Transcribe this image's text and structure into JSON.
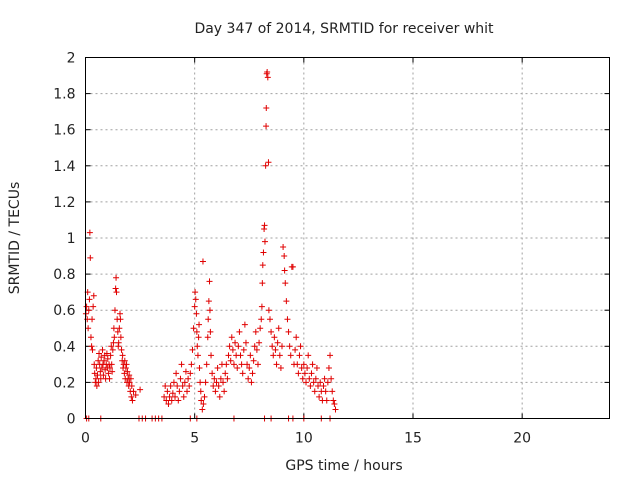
{
  "chart_data": {
    "type": "scatter",
    "title": "Day 347 of 2014, SRMTID for receiver whit",
    "xlabel": "GPS time / hours",
    "ylabel": "SRMTID / TECUs",
    "xlim": [
      0,
      24
    ],
    "ylim": [
      0,
      2
    ],
    "xticks": [
      0,
      5,
      10,
      15,
      20
    ],
    "yticks": [
      0,
      0.2,
      0.4,
      0.6,
      0.8,
      1,
      1.2,
      1.4,
      1.6,
      1.8,
      2
    ],
    "xtick_labels": [
      "0",
      "5",
      "10",
      "15",
      "20"
    ],
    "ytick_labels": [
      "0",
      "0.2",
      "0.4",
      "0.6",
      "0.8",
      "1",
      "1.2",
      "1.4",
      "1.6",
      "1.8",
      "2"
    ],
    "grid": true,
    "marker": "plus",
    "color": "#e00000",
    "series": [
      {
        "name": "SRMTID",
        "points": [
          [
            0.02,
            0.58
          ],
          [
            0.05,
            0.62
          ],
          [
            0.08,
            0.55
          ],
          [
            0.1,
            0.7
          ],
          [
            0.12,
            0.5
          ],
          [
            0.15,
            0.6
          ],
          [
            0.18,
            0.66
          ],
          [
            0.2,
            1.03
          ],
          [
            0.22,
            0.89
          ],
          [
            0.25,
            0.45
          ],
          [
            0.28,
            0.4
          ],
          [
            0.3,
            0.55
          ],
          [
            0.32,
            0.38
          ],
          [
            0.35,
            0.62
          ],
          [
            0.38,
            0.68
          ],
          [
            0.4,
            0.3
          ],
          [
            0.42,
            0.25
          ],
          [
            0.45,
            0.2
          ],
          [
            0.48,
            0.22
          ],
          [
            0.5,
            0.28
          ],
          [
            0.52,
            0.18
          ],
          [
            0.55,
            0.24
          ],
          [
            0.58,
            0.32
          ],
          [
            0.6,
            0.2
          ],
          [
            0.62,
            0.36
          ],
          [
            0.65,
            0.3
          ],
          [
            0.68,
            0.26
          ],
          [
            0.7,
            0.22
          ],
          [
            0.72,
            0.34
          ],
          [
            0.75,
            0.28
          ],
          [
            0.78,
            0.38
          ],
          [
            0.8,
            0.3
          ],
          [
            0.82,
            0.24
          ],
          [
            0.85,
            0.32
          ],
          [
            0.88,
            0.35
          ],
          [
            0.9,
            0.27
          ],
          [
            0.92,
            0.22
          ],
          [
            0.95,
            0.3
          ],
          [
            0.98,
            0.36
          ],
          [
            1.0,
            0.28
          ],
          [
            1.02,
            0.33
          ],
          [
            1.05,
            0.25
          ],
          [
            1.08,
            0.3
          ],
          [
            1.1,
            0.22
          ],
          [
            1.12,
            0.28
          ],
          [
            1.15,
            0.35
          ],
          [
            1.18,
            0.4
          ],
          [
            1.2,
            0.3
          ],
          [
            1.22,
            0.26
          ],
          [
            1.25,
            0.38
          ],
          [
            1.28,
            0.42
          ],
          [
            1.3,
            0.5
          ],
          [
            1.32,
            0.45
          ],
          [
            1.35,
            0.6
          ],
          [
            1.38,
            0.72
          ],
          [
            1.4,
            0.78
          ],
          [
            1.42,
            0.7
          ],
          [
            1.45,
            0.55
          ],
          [
            1.48,
            0.48
          ],
          [
            1.5,
            0.4
          ],
          [
            1.52,
            0.42
          ],
          [
            1.55,
            0.5
          ],
          [
            1.58,
            0.58
          ],
          [
            1.6,
            0.55
          ],
          [
            1.62,
            0.45
          ],
          [
            1.65,
            0.38
          ],
          [
            1.68,
            0.32
          ],
          [
            1.7,
            0.35
          ],
          [
            1.72,
            0.28
          ],
          [
            1.75,
            0.3
          ],
          [
            1.78,
            0.25
          ],
          [
            1.8,
            0.32
          ],
          [
            1.82,
            0.22
          ],
          [
            1.85,
            0.28
          ],
          [
            1.88,
            0.3
          ],
          [
            1.9,
            0.2
          ],
          [
            1.92,
            0.26
          ],
          [
            1.95,
            0.22
          ],
          [
            1.98,
            0.18
          ],
          [
            2.0,
            0.24
          ],
          [
            2.02,
            0.2
          ],
          [
            2.05,
            0.15
          ],
          [
            2.08,
            0.22
          ],
          [
            2.1,
            0.12
          ],
          [
            2.12,
            0.18
          ],
          [
            2.15,
            0.1
          ],
          [
            2.2,
            0.15
          ],
          [
            2.3,
            0.13
          ],
          [
            2.5,
            0.16
          ],
          [
            0.05,
            0.0
          ],
          [
            0.15,
            0.0
          ],
          [
            0.7,
            0.0
          ],
          [
            2.45,
            0.0
          ],
          [
            2.6,
            0.0
          ],
          [
            2.75,
            0.0
          ],
          [
            3.05,
            0.0
          ],
          [
            3.2,
            0.0
          ],
          [
            3.35,
            0.0
          ],
          [
            3.5,
            0.0
          ],
          [
            4.8,
            0.0
          ],
          [
            5.1,
            0.0
          ],
          [
            6.8,
            0.0
          ],
          [
            8.2,
            0.0
          ],
          [
            8.5,
            0.0
          ],
          [
            9.3,
            0.0
          ],
          [
            9.5,
            0.0
          ],
          [
            10.0,
            0.0
          ],
          [
            10.8,
            0.0
          ],
          [
            11.2,
            0.0
          ],
          [
            3.6,
            0.12
          ],
          [
            3.65,
            0.18
          ],
          [
            3.7,
            0.1
          ],
          [
            3.75,
            0.15
          ],
          [
            3.8,
            0.08
          ],
          [
            3.85,
            0.12
          ],
          [
            3.9,
            0.18
          ],
          [
            3.95,
            0.1
          ],
          [
            4.0,
            0.14
          ],
          [
            4.05,
            0.2
          ],
          [
            4.1,
            0.12
          ],
          [
            4.15,
            0.25
          ],
          [
            4.2,
            0.18
          ],
          [
            4.25,
            0.1
          ],
          [
            4.3,
            0.15
          ],
          [
            4.35,
            0.22
          ],
          [
            4.4,
            0.3
          ],
          [
            4.45,
            0.18
          ],
          [
            4.5,
            0.12
          ],
          [
            4.55,
            0.2
          ],
          [
            4.6,
            0.26
          ],
          [
            4.65,
            0.15
          ],
          [
            4.7,
            0.22
          ],
          [
            4.75,
            0.18
          ],
          [
            4.8,
            0.25
          ],
          [
            4.85,
            0.3
          ],
          [
            4.9,
            0.38
          ],
          [
            4.95,
            0.5
          ],
          [
            5.0,
            0.62
          ],
          [
            5.02,
            0.7
          ],
          [
            5.05,
            0.66
          ],
          [
            5.08,
            0.58
          ],
          [
            5.1,
            0.48
          ],
          [
            5.12,
            0.4
          ],
          [
            5.15,
            0.35
          ],
          [
            5.18,
            0.45
          ],
          [
            5.2,
            0.52
          ],
          [
            5.22,
            0.28
          ],
          [
            5.25,
            0.2
          ],
          [
            5.28,
            0.15
          ],
          [
            5.3,
            0.1
          ],
          [
            5.35,
            0.05
          ],
          [
            5.38,
            0.87
          ],
          [
            5.4,
            0.08
          ],
          [
            5.45,
            0.12
          ],
          [
            5.5,
            0.2
          ],
          [
            5.55,
            0.3
          ],
          [
            5.6,
            0.45
          ],
          [
            5.62,
            0.55
          ],
          [
            5.65,
            0.65
          ],
          [
            5.68,
            0.76
          ],
          [
            5.7,
            0.6
          ],
          [
            5.72,
            0.48
          ],
          [
            5.75,
            0.35
          ],
          [
            5.8,
            0.25
          ],
          [
            5.85,
            0.18
          ],
          [
            5.9,
            0.22
          ],
          [
            5.95,
            0.15
          ],
          [
            6.0,
            0.2
          ],
          [
            6.05,
            0.28
          ],
          [
            6.1,
            0.18
          ],
          [
            6.15,
            0.12
          ],
          [
            6.2,
            0.22
          ],
          [
            6.25,
            0.3
          ],
          [
            6.3,
            0.2
          ],
          [
            6.35,
            0.15
          ],
          [
            6.4,
            0.25
          ],
          [
            6.45,
            0.3
          ],
          [
            6.5,
            0.22
          ],
          [
            6.55,
            0.35
          ],
          [
            6.6,
            0.4
          ],
          [
            6.65,
            0.32
          ],
          [
            6.7,
            0.45
          ],
          [
            6.75,
            0.38
          ],
          [
            6.8,
            0.3
          ],
          [
            6.85,
            0.42
          ],
          [
            6.9,
            0.35
          ],
          [
            6.95,
            0.28
          ],
          [
            7.0,
            0.4
          ],
          [
            7.05,
            0.48
          ],
          [
            7.1,
            0.35
          ],
          [
            7.15,
            0.3
          ],
          [
            7.2,
            0.25
          ],
          [
            7.25,
            0.38
          ],
          [
            7.3,
            0.52
          ],
          [
            7.35,
            0.42
          ],
          [
            7.4,
            0.3
          ],
          [
            7.45,
            0.22
          ],
          [
            7.5,
            0.28
          ],
          [
            7.55,
            0.35
          ],
          [
            7.6,
            0.2
          ],
          [
            7.65,
            0.25
          ],
          [
            7.7,
            0.32
          ],
          [
            7.75,
            0.4
          ],
          [
            7.8,
            0.48
          ],
          [
            7.85,
            0.38
          ],
          [
            7.9,
            0.3
          ],
          [
            7.95,
            0.42
          ],
          [
            8.0,
            0.5
          ],
          [
            8.05,
            0.55
          ],
          [
            8.08,
            0.62
          ],
          [
            8.1,
            0.75
          ],
          [
            8.12,
            0.85
          ],
          [
            8.15,
            0.92
          ],
          [
            8.18,
            1.05
          ],
          [
            8.2,
            1.07
          ],
          [
            8.22,
            0.98
          ],
          [
            8.25,
            1.4
          ],
          [
            8.27,
            1.62
          ],
          [
            8.28,
            1.72
          ],
          [
            8.3,
            1.91
          ],
          [
            8.32,
            1.92
          ],
          [
            8.35,
            1.89
          ],
          [
            8.38,
            1.42
          ],
          [
            8.4,
            0.6
          ],
          [
            8.45,
            0.55
          ],
          [
            8.5,
            0.48
          ],
          [
            8.55,
            0.4
          ],
          [
            8.6,
            0.35
          ],
          [
            8.65,
            0.45
          ],
          [
            8.7,
            0.38
          ],
          [
            8.75,
            0.3
          ],
          [
            8.8,
            0.42
          ],
          [
            8.85,
            0.5
          ],
          [
            8.9,
            0.35
          ],
          [
            8.95,
            0.28
          ],
          [
            9.0,
            0.4
          ],
          [
            9.05,
            0.95
          ],
          [
            9.1,
            0.9
          ],
          [
            9.12,
            0.82
          ],
          [
            9.15,
            0.75
          ],
          [
            9.2,
            0.65
          ],
          [
            9.25,
            0.55
          ],
          [
            9.3,
            0.48
          ],
          [
            9.35,
            0.4
          ],
          [
            9.4,
            0.35
          ],
          [
            9.45,
            0.84
          ],
          [
            9.5,
            0.84
          ],
          [
            9.55,
            0.3
          ],
          [
            9.6,
            0.38
          ],
          [
            9.65,
            0.45
          ],
          [
            9.7,
            0.3
          ],
          [
            9.75,
            0.25
          ],
          [
            9.8,
            0.35
          ],
          [
            9.85,
            0.4
          ],
          [
            9.9,
            0.28
          ],
          [
            9.95,
            0.22
          ],
          [
            10.0,
            0.3
          ],
          [
            10.05,
            0.25
          ],
          [
            10.1,
            0.2
          ],
          [
            10.15,
            0.28
          ],
          [
            10.2,
            0.35
          ],
          [
            10.25,
            0.22
          ],
          [
            10.3,
            0.18
          ],
          [
            10.35,
            0.25
          ],
          [
            10.4,
            0.3
          ],
          [
            10.45,
            0.2
          ],
          [
            10.5,
            0.15
          ],
          [
            10.55,
            0.22
          ],
          [
            10.6,
            0.28
          ],
          [
            10.65,
            0.18
          ],
          [
            10.7,
            0.12
          ],
          [
            10.75,
            0.2
          ],
          [
            10.8,
            0.15
          ],
          [
            10.85,
            0.1
          ],
          [
            10.9,
            0.18
          ],
          [
            10.95,
            0.22
          ],
          [
            11.0,
            0.15
          ],
          [
            11.05,
            0.1
          ],
          [
            11.1,
            0.2
          ],
          [
            11.15,
            0.28
          ],
          [
            11.2,
            0.35
          ],
          [
            11.25,
            0.22
          ],
          [
            11.3,
            0.15
          ],
          [
            11.35,
            0.1
          ],
          [
            11.4,
            0.08
          ],
          [
            11.45,
            0.05
          ]
        ]
      }
    ]
  }
}
